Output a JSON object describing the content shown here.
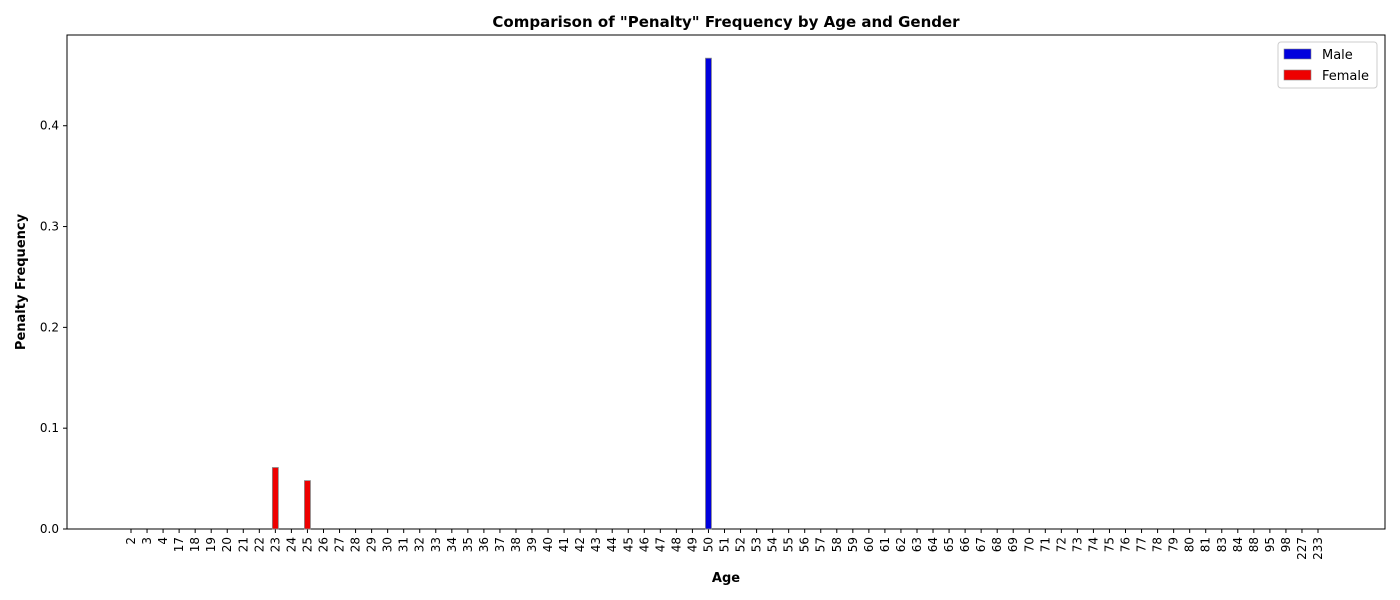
{
  "chart_data": {
    "type": "bar",
    "title": "Comparison of \"Penalty\" Frequency by Age and Gender",
    "xlabel": "Age",
    "ylabel": "Penalty Frequency",
    "ylim": [
      0,
      0.49
    ],
    "yticks": [
      "0.0",
      "0.1",
      "0.2",
      "0.3",
      "0.4"
    ],
    "grid": false,
    "legend_position": "top-right",
    "categories": [
      "2",
      "3",
      "4",
      "17",
      "18",
      "19",
      "20",
      "21",
      "22",
      "23",
      "24",
      "25",
      "26",
      "27",
      "28",
      "29",
      "30",
      "31",
      "32",
      "33",
      "34",
      "35",
      "36",
      "37",
      "38",
      "39",
      "40",
      "41",
      "42",
      "43",
      "44",
      "45",
      "46",
      "47",
      "48",
      "49",
      "50",
      "51",
      "52",
      "53",
      "54",
      "55",
      "56",
      "57",
      "58",
      "59",
      "60",
      "61",
      "62",
      "63",
      "64",
      "65",
      "66",
      "67",
      "68",
      "69",
      "70",
      "71",
      "72",
      "73",
      "74",
      "75",
      "76",
      "77",
      "78",
      "79",
      "80",
      "81",
      "83",
      "84",
      "88",
      "95",
      "98",
      "227",
      "233"
    ],
    "series": [
      {
        "name": "Male",
        "color": "#0000dd",
        "values": {
          "50": 0.467
        }
      },
      {
        "name": "Female",
        "color": "#ee0000",
        "values": {
          "23": 0.061,
          "25": 0.048
        }
      }
    ]
  }
}
